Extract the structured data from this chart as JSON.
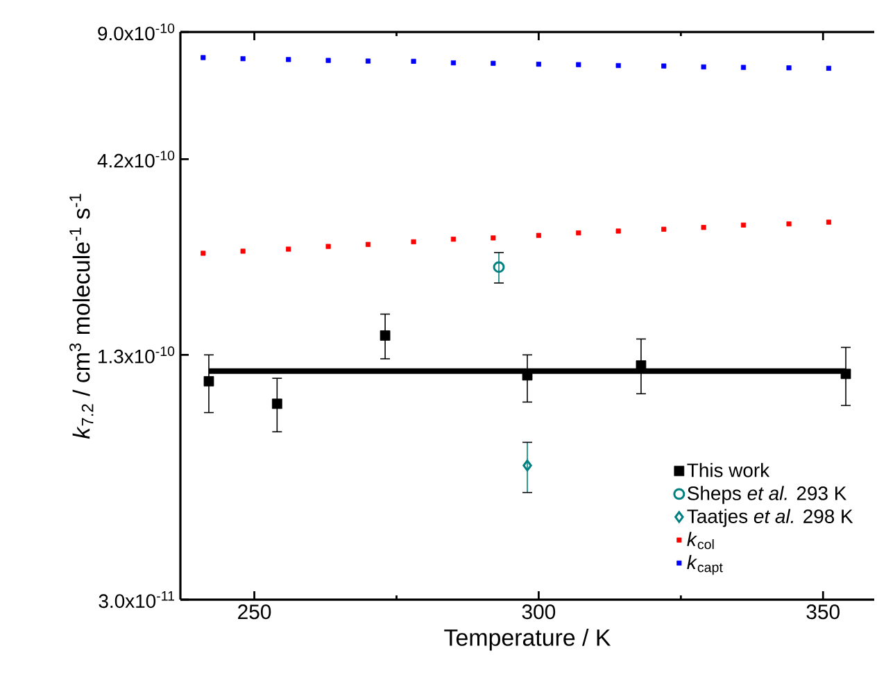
{
  "chart_data": {
    "type": "scatter",
    "xlabel": "Temperature / K",
    "ylabel": "*k*$_{7.2}$ / cm$^{3}$ molecule$^{-1}$ s$^{-1}$",
    "xlim": [
      237,
      359
    ],
    "xticks": [
      250,
      300,
      350
    ],
    "ylim": [
      3e-11,
      9e-10
    ],
    "yticks": [
      {
        "value": 3e-11,
        "label": "3.0x10$^{-11}$"
      },
      {
        "value": 1.3e-10,
        "label": "1.3x10$^{-10}$"
      },
      {
        "value": 4.2e-10,
        "label": "4.2x10$^{-10}$"
      },
      {
        "value": 9e-10,
        "label": "9.0x10$^{-10}$"
      }
    ],
    "log": "y",
    "legend": "bottom right",
    "series": [
      {
        "name": "This work",
        "marker": "square",
        "color": "#000000",
        "x": [
          242,
          254,
          273,
          298,
          318,
          354
        ],
        "values": [
          1.11e-10,
          9.7e-11,
          1.46e-10,
          1.15e-10,
          1.22e-10,
          1.16e-10
        ],
        "errors": [
          [
            9.2e-11,
            1.3e-10
          ],
          [
            8.2e-11,
            1.13e-10
          ],
          [
            1.27e-10,
            1.66e-10
          ],
          [
            9.8e-11,
            1.3e-10
          ],
          [
            1.03e-10,
            1.43e-10
          ],
          [
            9.6e-11,
            1.36e-10
          ]
        ]
      },
      {
        "name": "Sheps *et al.* 293 K",
        "marker": "circle",
        "color": "#008080",
        "x": [
          293
        ],
        "values": [
          2.2e-10
        ],
        "errors": [
          [
            2e-10,
            2.4e-10
          ]
        ]
      },
      {
        "name": "Taatjes *et al.* 298 K",
        "marker": "diamond",
        "color": "#008080",
        "x": [
          298
        ],
        "values": [
          6.7e-11
        ],
        "errors": [
          [
            5.7e-11,
            7.7e-11
          ]
        ]
      },
      {
        "name": "*k*$_{col}$",
        "marker": "square",
        "color": "#ff0000",
        "x": [
          241,
          248,
          256,
          263,
          270,
          278,
          285,
          292,
          300,
          307,
          314,
          322,
          329,
          336,
          344,
          351
        ],
        "values": [
          2.39e-10,
          2.42e-10,
          2.45e-10,
          2.49e-10,
          2.52e-10,
          2.56e-10,
          2.6e-10,
          2.62e-10,
          2.66e-10,
          2.7e-10,
          2.73e-10,
          2.76e-10,
          2.79e-10,
          2.83e-10,
          2.85e-10,
          2.88e-10
        ]
      },
      {
        "name": "*k*$_{capt}$",
        "marker": "square",
        "color": "#0000ff",
        "x": [
          241,
          248,
          256,
          263,
          270,
          278,
          285,
          292,
          300,
          307,
          314,
          322,
          329,
          336,
          344,
          351
        ],
        "values": [
          7.72e-10,
          7.67e-10,
          7.63e-10,
          7.59e-10,
          7.56e-10,
          7.55e-10,
          7.48e-10,
          7.46e-10,
          7.42e-10,
          7.4e-10,
          7.36e-10,
          7.34e-10,
          7.3e-10,
          7.28e-10,
          7.26e-10,
          7.24e-10
        ]
      },
      {
        "type": "line",
        "marker": "none",
        "color": "#000000",
        "x": [
          242,
          354
        ],
        "values": [
          1.18e-10,
          1.18e-10
        ]
      }
    ]
  }
}
